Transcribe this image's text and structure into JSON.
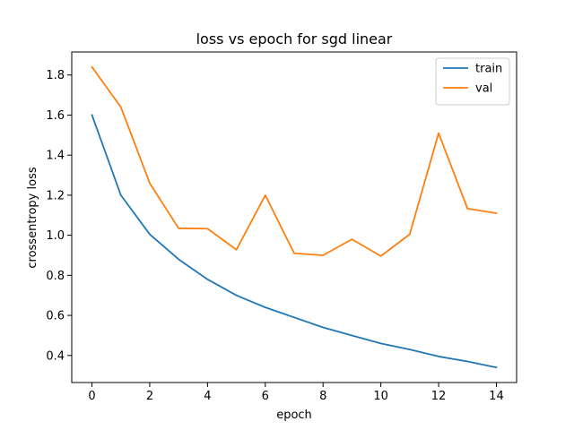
{
  "chart_data": {
    "type": "line",
    "title": "loss vs epoch for sgd linear",
    "xlabel": "epoch",
    "ylabel": "crossentropy loss",
    "x": [
      0,
      1,
      2,
      3,
      4,
      5,
      6,
      7,
      8,
      9,
      10,
      11,
      12,
      13,
      14
    ],
    "xlim": [
      -0.7,
      14.7
    ],
    "ylim": [
      0.265,
      1.915
    ],
    "xticks": [
      0,
      2,
      4,
      6,
      8,
      10,
      12,
      14
    ],
    "yticks": [
      0.4,
      0.6,
      0.8,
      1.0,
      1.2,
      1.4,
      1.6,
      1.8
    ],
    "ytick_labels": [
      "0.4",
      "0.6",
      "0.8",
      "1.0",
      "1.2",
      "1.4",
      "1.6",
      "1.8"
    ],
    "legend_position": "top-right",
    "grid": false,
    "series": [
      {
        "name": "train",
        "color": "#1f77b4",
        "values": [
          1.6,
          1.2,
          1.005,
          0.88,
          0.78,
          0.7,
          0.64,
          0.59,
          0.54,
          0.5,
          0.46,
          0.43,
          0.395,
          0.37,
          0.34
        ]
      },
      {
        "name": "val",
        "color": "#ff7f0e",
        "values": [
          1.84,
          1.64,
          1.26,
          1.035,
          1.033,
          0.928,
          1.2,
          0.91,
          0.9,
          0.98,
          0.896,
          1.005,
          1.51,
          1.133,
          1.11
        ]
      }
    ]
  }
}
